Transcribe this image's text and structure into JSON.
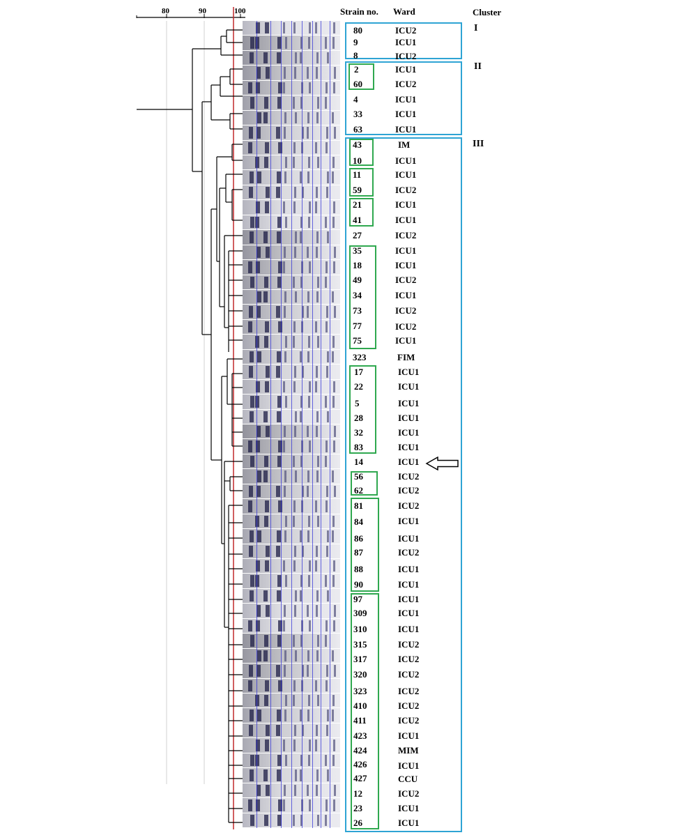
{
  "figure": {
    "scale_ticks": [
      "80",
      "90",
      "100"
    ],
    "headers": {
      "strain": "Strain no.",
      "ward": "Ward",
      "cluster": "Cluster"
    },
    "clusters": [
      {
        "label": "I"
      },
      {
        "label": "II"
      },
      {
        "label": "III"
      }
    ],
    "strains": [
      {
        "no": "80",
        "ward": "ICU2"
      },
      {
        "no": "9",
        "ward": "ICU1"
      },
      {
        "no": "8",
        "ward": "ICU2"
      },
      {
        "no": "2",
        "ward": "ICU1"
      },
      {
        "no": "60",
        "ward": "ICU2"
      },
      {
        "no": "4",
        "ward": "ICU1"
      },
      {
        "no": "33",
        "ward": "ICU1"
      },
      {
        "no": "63",
        "ward": "ICU1"
      },
      {
        "no": "43",
        "ward": "IM"
      },
      {
        "no": "10",
        "ward": "ICU1"
      },
      {
        "no": "11",
        "ward": "ICU1"
      },
      {
        "no": "59",
        "ward": "ICU2"
      },
      {
        "no": "21",
        "ward": "ICU1"
      },
      {
        "no": "41",
        "ward": "ICU1"
      },
      {
        "no": "27",
        "ward": "ICU2"
      },
      {
        "no": "35",
        "ward": "ICU1"
      },
      {
        "no": "18",
        "ward": "ICU1"
      },
      {
        "no": "49",
        "ward": "ICU2"
      },
      {
        "no": "34",
        "ward": "ICU1"
      },
      {
        "no": "73",
        "ward": "ICU2"
      },
      {
        "no": "77",
        "ward": "ICU2"
      },
      {
        "no": "75",
        "ward": "ICU1"
      },
      {
        "no": "323",
        "ward": "FIM"
      },
      {
        "no": "17",
        "ward": "ICU1"
      },
      {
        "no": "22",
        "ward": "ICU1"
      },
      {
        "no": "5",
        "ward": "ICU1"
      },
      {
        "no": "28",
        "ward": "ICU1"
      },
      {
        "no": "32",
        "ward": "ICU1"
      },
      {
        "no": "83",
        "ward": "ICU1"
      },
      {
        "no": "14",
        "ward": "ICU1"
      },
      {
        "no": "56",
        "ward": "ICU2"
      },
      {
        "no": "62",
        "ward": "ICU2"
      },
      {
        "no": "81",
        "ward": "ICU2"
      },
      {
        "no": "84",
        "ward": "ICU1"
      },
      {
        "no": "86",
        "ward": "ICU1"
      },
      {
        "no": "87",
        "ward": "ICU2"
      },
      {
        "no": "88",
        "ward": "ICU1"
      },
      {
        "no": "90",
        "ward": "ICU1"
      },
      {
        "no": "97",
        "ward": "ICU1"
      },
      {
        "no": "309",
        "ward": "ICU1"
      },
      {
        "no": "310",
        "ward": "ICU1"
      },
      {
        "no": "315",
        "ward": "ICU2"
      },
      {
        "no": "317",
        "ward": "ICU2"
      },
      {
        "no": "320",
        "ward": "ICU2"
      },
      {
        "no": "323",
        "ward": "ICU2"
      },
      {
        "no": "410",
        "ward": "ICU2"
      },
      {
        "no": "411",
        "ward": "ICU2"
      },
      {
        "no": "423",
        "ward": "ICU1"
      },
      {
        "no": "424",
        "ward": "MIM"
      },
      {
        "no": "426",
        "ward": "ICU1"
      },
      {
        "no": "427",
        "ward": "CCU"
      },
      {
        "no": "12",
        "ward": "ICU2"
      },
      {
        "no": "23",
        "ward": "ICU1"
      },
      {
        "no": "26",
        "ward": "ICU1"
      }
    ],
    "colors": {
      "cluster_box": "#2ea4d4",
      "group_box": "#2fa84f",
      "cutoff_line": "#c0282c",
      "band_lines": "#2a2ad8"
    },
    "marker": "arrow-left-icon"
  }
}
